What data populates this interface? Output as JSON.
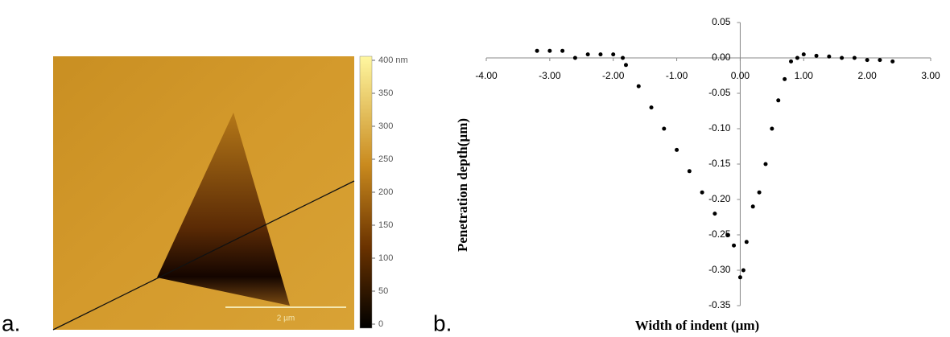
{
  "panel_a": {
    "label": "a.",
    "scale_bar": "2 µm",
    "colorbar": {
      "lim": [
        0,
        400
      ],
      "ticks": [
        {
          "value": 400,
          "label": "400 nm"
        },
        350,
        300,
        250,
        200,
        150,
        100,
        50,
        0
      ]
    }
  },
  "chart_data": {
    "type": "scatter",
    "panel_label": "b.",
    "x_label": "Width of indent (µm)",
    "y_label": "Penetration depth(µm)",
    "x": [
      -3.2,
      -3.0,
      -2.8,
      -2.6,
      -2.4,
      -2.2,
      -2.0,
      -1.85,
      -1.8,
      -1.6,
      -1.4,
      -1.2,
      -1.0,
      -0.8,
      -0.6,
      -0.4,
      -0.2,
      -0.1,
      0.0,
      0.05,
      0.1,
      0.2,
      0.3,
      0.4,
      0.5,
      0.6,
      0.7,
      0.8,
      0.9,
      1.0,
      1.2,
      1.4,
      1.6,
      1.8,
      2.0,
      2.2,
      2.4
    ],
    "values": [
      0.01,
      0.01,
      0.01,
      0.0,
      0.005,
      0.005,
      0.005,
      0.0,
      -0.01,
      -0.04,
      -0.07,
      -0.1,
      -0.13,
      -0.16,
      -0.19,
      -0.22,
      -0.25,
      -0.265,
      -0.31,
      -0.3,
      -0.26,
      -0.21,
      -0.19,
      -0.15,
      -0.1,
      -0.06,
      -0.03,
      -0.005,
      0.0,
      0.005,
      0.003,
      0.002,
      0.0,
      0.0,
      -0.003,
      -0.003,
      -0.005
    ],
    "color": "#000000",
    "xlim": [
      -4,
      3
    ],
    "xticks": [
      {
        "value": -4,
        "label": "-4.00"
      },
      {
        "value": -3,
        "label": "-3.00"
      },
      {
        "value": -2,
        "label": "-2.00"
      },
      {
        "value": -1,
        "label": "-1.00"
      },
      {
        "value": 0,
        "label": "0.00"
      },
      {
        "value": 1,
        "label": "1.00"
      },
      {
        "value": 2,
        "label": "2.00"
      },
      {
        "value": 3,
        "label": "3.00"
      }
    ],
    "ylim": [
      -0.35,
      0.05
    ],
    "yticks": [
      {
        "value": 0.05,
        "label": "0.05"
      },
      {
        "value": 0,
        "label": "0.00"
      },
      {
        "value": -0.05,
        "label": "-0.05"
      },
      {
        "value": -0.1,
        "label": "-0.10"
      },
      {
        "value": -0.15,
        "label": "-0.15"
      },
      {
        "value": -0.2,
        "label": "-0.20"
      },
      {
        "value": -0.25,
        "label": "-0.25"
      },
      {
        "value": -0.3,
        "label": "-0.30"
      },
      {
        "value": -0.35,
        "label": "-0.35"
      }
    ]
  }
}
